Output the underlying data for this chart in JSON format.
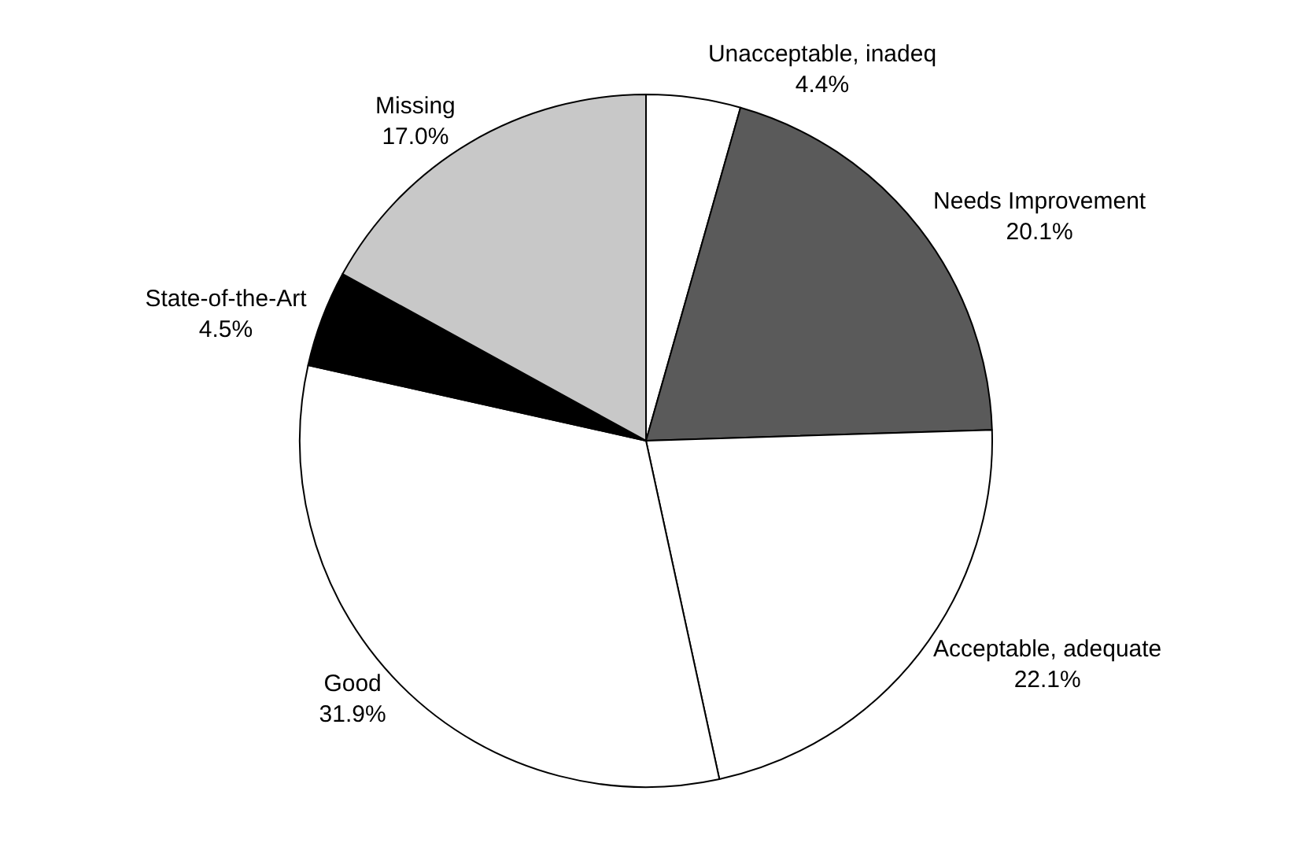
{
  "chart_data": {
    "type": "pie",
    "categories": [
      "Unacceptable, inadeq",
      "Needs Improvement",
      "Acceptable, adequate",
      "Good",
      "State-of-the-Art",
      "Missing"
    ],
    "values": [
      4.4,
      20.1,
      22.1,
      31.9,
      4.5,
      17.0
    ],
    "value_labels": [
      "4.4%",
      "20.1%",
      "22.1%",
      "31.9%",
      "4.5%",
      "17.0%"
    ],
    "colors": [
      "#ffffff",
      "#5a5a5a",
      "#ffffff",
      "#ffffff",
      "#000000",
      "#c8c8c8"
    ],
    "legend": false
  }
}
